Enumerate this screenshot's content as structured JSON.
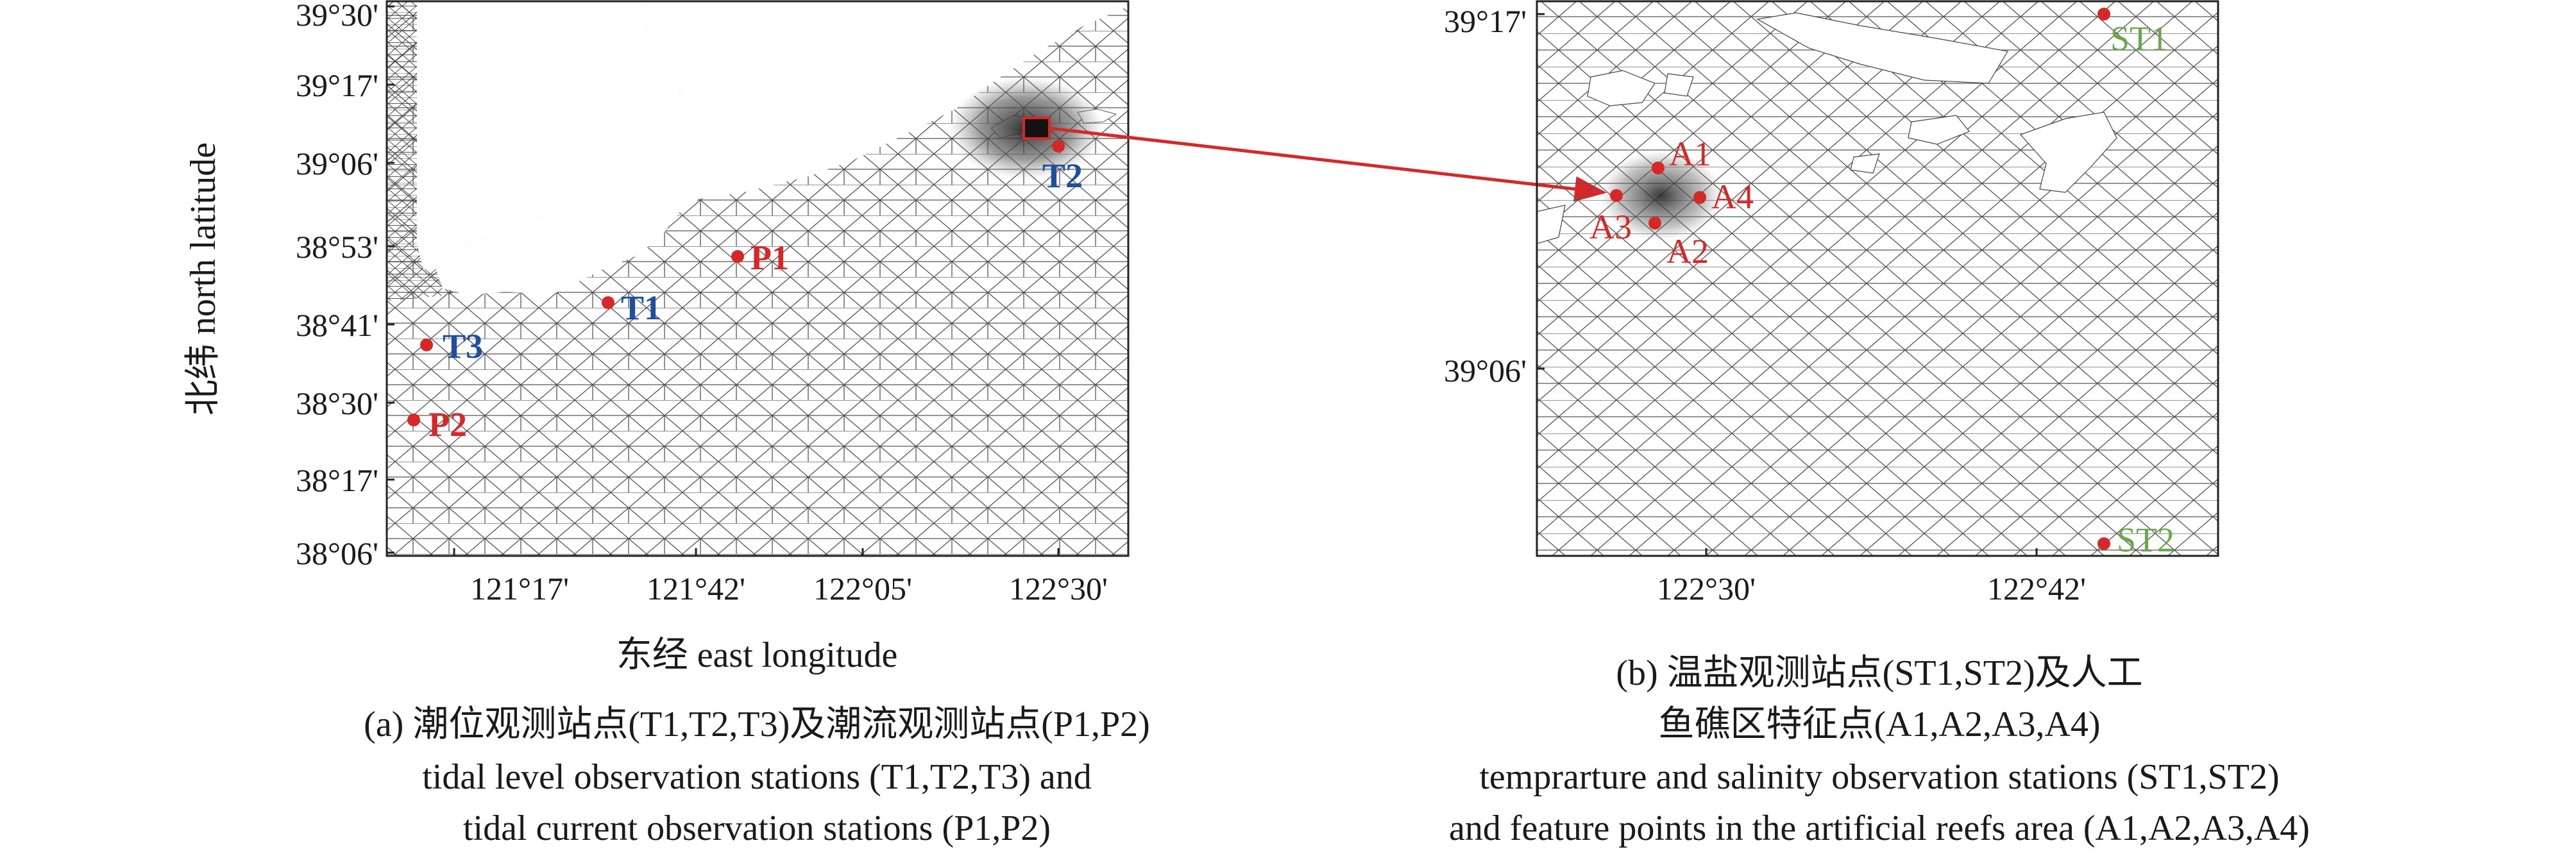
{
  "panel_a": {
    "y_ticks": [
      "39°30'",
      "39°17'",
      "39°06'",
      "38°53'",
      "38°41'",
      "38°30'",
      "38°17'",
      "38°06'"
    ],
    "x_ticks": [
      "121°17'",
      "121°42'",
      "122°05'",
      "122°30'"
    ],
    "ylabel": "北纬 north latitude",
    "xlabel": "东经 east longitude",
    "stations": [
      {
        "label": "T1",
        "color": "#1f4e9e"
      },
      {
        "label": "T2",
        "color": "#1f4e9e"
      },
      {
        "label": "T3",
        "color": "#1f4e9e"
      },
      {
        "label": "P1",
        "color": "#d62828"
      },
      {
        "label": "P2",
        "color": "#d62828"
      }
    ],
    "caption": [
      "(a) 潮位观测站点(T1,T2,T3)及潮流观测站点(P1,P2)",
      "tidal level observation stations (T1,T2,T3) and",
      "tidal current observation stations (P1,P2)"
    ]
  },
  "panel_b": {
    "y_ticks": [
      "39°17'",
      "39°06'"
    ],
    "x_ticks": [
      "122°30'",
      "122°42'"
    ],
    "stations": [
      {
        "label": "ST1",
        "color": "#6aa84f"
      },
      {
        "label": "ST2",
        "color": "#6aa84f"
      },
      {
        "label": "A1",
        "color": "#d62828"
      },
      {
        "label": "A2",
        "color": "#d62828"
      },
      {
        "label": "A3",
        "color": "#d62828"
      },
      {
        "label": "A4",
        "color": "#d62828"
      }
    ],
    "caption": [
      "(b) 温盐观测站点(ST1,ST2)及人工",
      "鱼礁区特征点(A1,A2,A3,A4)",
      "temprarture and salinity observation stations (ST1,ST2)",
      "and feature points in the artificial reefs area (A1,A2,A3,A4)"
    ]
  },
  "colors": {
    "marker": "#d62828",
    "mesh": "#555555",
    "arrow": "#d62828"
  }
}
